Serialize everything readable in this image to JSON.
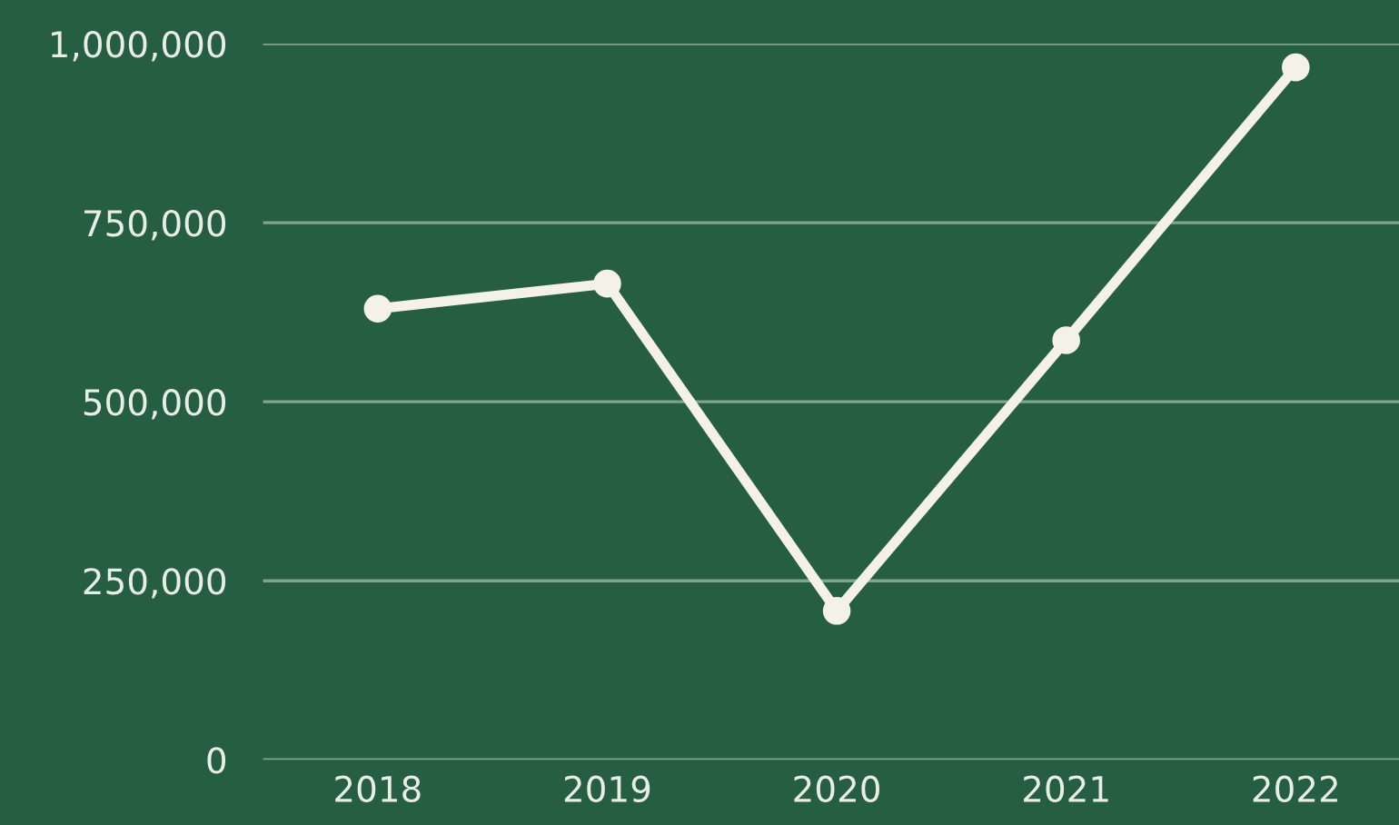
{
  "chart_data": {
    "type": "line",
    "categories": [
      "2018",
      "2019",
      "2020",
      "2021",
      "2022"
    ],
    "series": [
      {
        "color": "#f4f2e8",
        "values": [
          630000,
          665000,
          208000,
          586000,
          967000
        ]
      }
    ],
    "ylim": [
      0,
      1000000
    ],
    "yticks": [
      {
        "value": 0,
        "label": "0"
      },
      {
        "value": 250000,
        "label": "250,000"
      },
      {
        "value": 500000,
        "label": "500,000"
      },
      {
        "value": 750000,
        "label": "750,000"
      },
      {
        "value": 1000000,
        "label": "1,000,000"
      }
    ],
    "grid": "y",
    "marker": "circle",
    "line_style": "solid"
  }
}
